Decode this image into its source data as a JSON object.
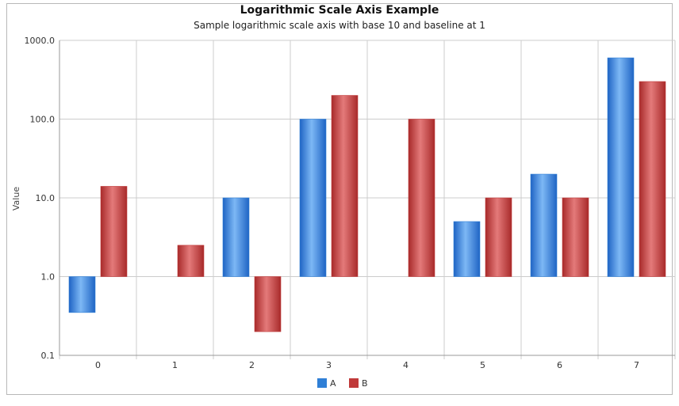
{
  "chart_data": {
    "type": "bar",
    "title": "Logarithmic Scale Axis Example",
    "subtitle": "Sample logarithmic scale axis with base 10 and baseline at 1",
    "xlabel": "",
    "ylabel": "Value",
    "categories": [
      "0",
      "1",
      "2",
      "3",
      "4",
      "5",
      "6",
      "7"
    ],
    "series": [
      {
        "name": "A",
        "color": "#2f7fd6",
        "values": [
          0.35,
          null,
          10,
          100,
          null,
          5,
          20,
          600
        ]
      },
      {
        "name": "B",
        "color": "#c03a3a",
        "values": [
          14,
          2.5,
          0.2,
          200,
          100,
          10,
          10,
          300
        ]
      }
    ],
    "y_scale": "log",
    "log_base": 10,
    "baseline": 1,
    "ylim": [
      0.1,
      1000
    ],
    "yticks": [
      "0.1",
      "1.0",
      "10.0",
      "100.0",
      "1000.0"
    ],
    "grid": true,
    "legend": "bottom"
  }
}
